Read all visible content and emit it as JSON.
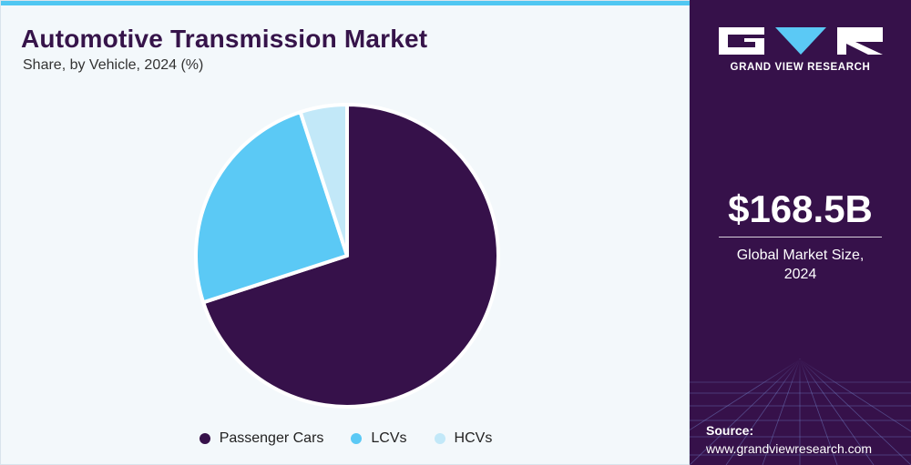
{
  "chart_data": {
    "type": "pie",
    "title": "Automotive Transmission Market",
    "subtitle": "Share, by Vehicle, 2024 (%)",
    "categories": [
      "Passenger Cars",
      "LCVs",
      "HCVs"
    ],
    "values": [
      70,
      25,
      5
    ],
    "colors": [
      "#36114a",
      "#5bc9f5",
      "#c2e8f8"
    ],
    "legend_position": "bottom-center",
    "start": "12 o'clock",
    "direction": "clockwise"
  },
  "sidebar": {
    "brand": "GRAND VIEW RESEARCH",
    "market_size": "$168.5B",
    "market_label_line1": "Global Market Size,",
    "market_label_line2": "2024",
    "source_label": "Source:",
    "source_url": "www.grandviewresearch.com"
  },
  "colors": {
    "accent": "#50c7f2",
    "sidebar_bg": "#36114a",
    "page_bg": "#f3f8fb"
  }
}
